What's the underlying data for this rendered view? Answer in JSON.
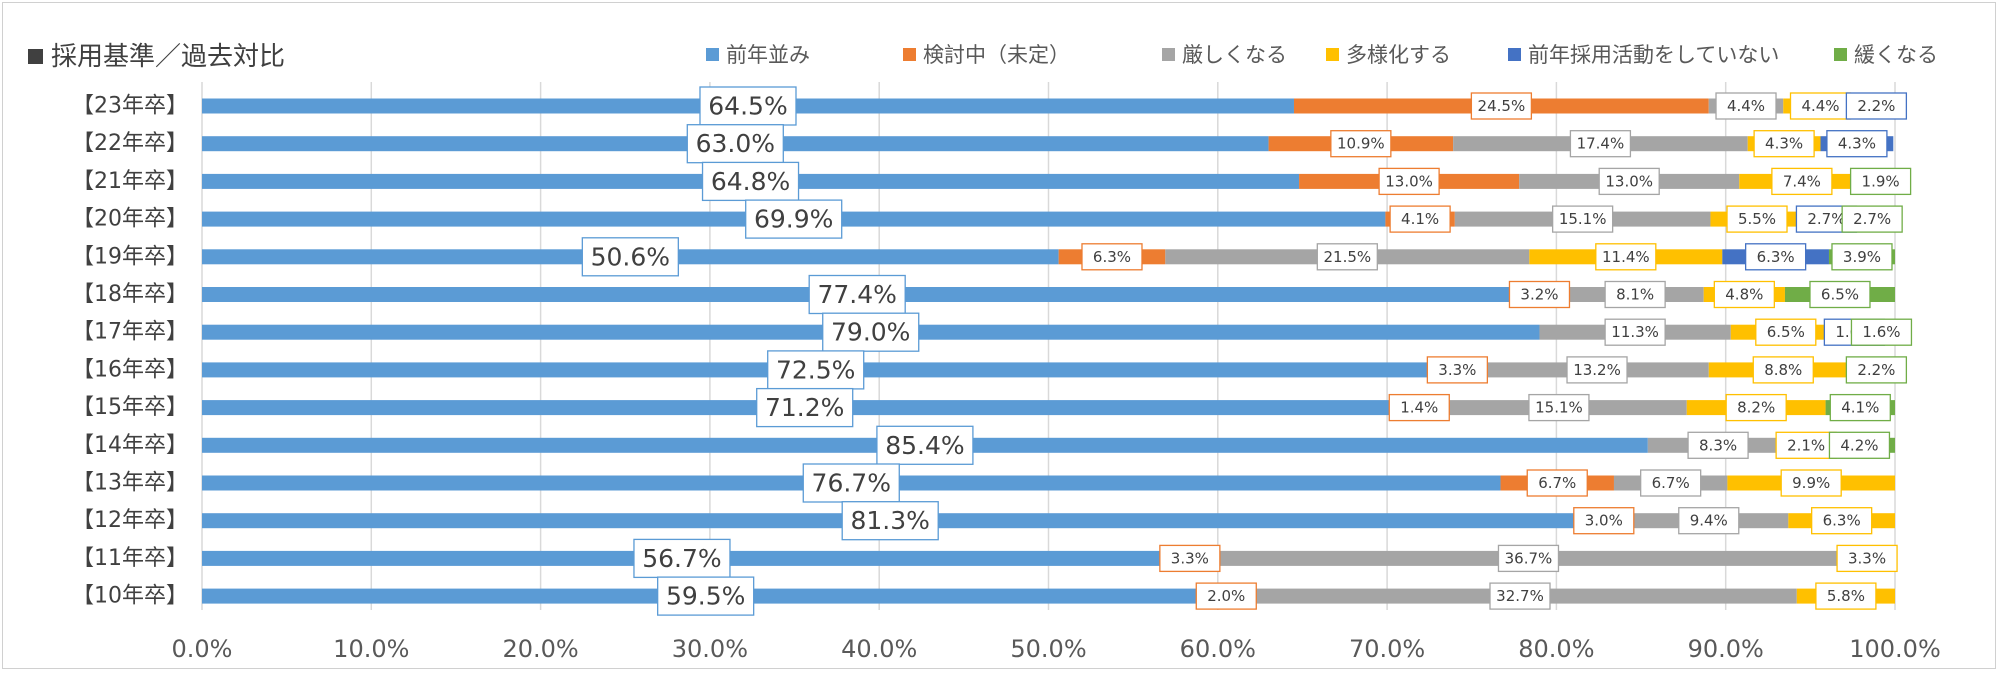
{
  "title": "採用基準／過去対比",
  "chart_data": {
    "type": "bar",
    "orientation": "horizontal",
    "stacked": true,
    "title": "採用基準／過去対比",
    "xlabel": "",
    "ylabel": "",
    "xlim": [
      0,
      100
    ],
    "x_ticks": [
      "0.0%",
      "10.0%",
      "20.0%",
      "30.0%",
      "40.0%",
      "50.0%",
      "60.0%",
      "70.0%",
      "80.0%",
      "90.0%",
      "100.0%"
    ],
    "gridlines": true,
    "legend_position": "top",
    "categories": [
      "【23年卒】",
      "【22年卒】",
      "【21年卒】",
      "【20年卒】",
      "【19年卒】",
      "【18年卒】",
      "【17年卒】",
      "【16年卒】",
      "【15年卒】",
      "【14年卒】",
      "【13年卒】",
      "【12年卒】",
      "【11年卒】",
      "【10年卒】"
    ],
    "series": [
      {
        "name": "前年並み",
        "color": "#5b9bd5",
        "values": [
          64.5,
          63.0,
          64.8,
          69.9,
          50.6,
          77.4,
          79.0,
          72.5,
          71.2,
          85.4,
          76.7,
          81.3,
          56.7,
          59.5
        ]
      },
      {
        "name": "検討中（未定）",
        "color": "#ed7d31",
        "values": [
          24.5,
          10.9,
          13.0,
          4.1,
          6.3,
          3.2,
          0,
          3.3,
          1.4,
          0,
          6.7,
          3.0,
          3.3,
          2.0
        ]
      },
      {
        "name": "厳しくなる",
        "color": "#a5a5a5",
        "values": [
          4.4,
          17.4,
          13.0,
          15.1,
          21.5,
          8.1,
          11.3,
          13.2,
          15.1,
          8.3,
          6.7,
          9.4,
          36.7,
          32.7
        ]
      },
      {
        "name": "多様化する",
        "color": "#ffc000",
        "values": [
          4.4,
          4.3,
          7.4,
          5.5,
          11.4,
          4.8,
          6.5,
          8.8,
          8.2,
          2.1,
          9.9,
          6.3,
          3.3,
          5.8
        ]
      },
      {
        "name": "前年採用活動をしていない",
        "color": "#4472c4",
        "values": [
          2.2,
          4.3,
          0,
          2.7,
          6.3,
          0,
          1.6,
          0,
          0,
          0,
          0,
          0,
          0,
          0
        ]
      },
      {
        "name": "緩くなる",
        "color": "#70ad47",
        "values": [
          0,
          0,
          1.9,
          2.7,
          3.9,
          6.5,
          1.6,
          2.2,
          4.1,
          4.2,
          0,
          0,
          0,
          0
        ]
      }
    ]
  }
}
